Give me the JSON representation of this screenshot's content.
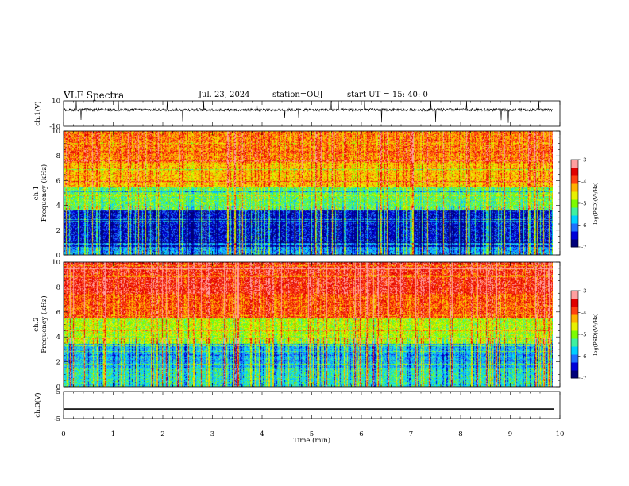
{
  "header": {
    "title": "VLF Spectra",
    "date": "Jul. 23, 2024",
    "station": "station=OUJ",
    "start": "start UT =  15: 40: 0"
  },
  "colors": {
    "spectrum_scale": [
      "#00007a",
      "#0000d8",
      "#1e6fff",
      "#00cfff",
      "#40f0a0",
      "#7cfc00",
      "#e8f000",
      "#ffb000",
      "#ff4010",
      "#e00000",
      "#ff9f9f"
    ],
    "trace": "#000000",
    "background": "#ffffff"
  },
  "chart_data": [
    {
      "type": "line",
      "name": "channel-1-waveform",
      "ylabel": "ch.1(V)",
      "ylim": [
        -10,
        10
      ],
      "yticks": [
        "10",
        "-10"
      ],
      "xlim": [
        0,
        10
      ],
      "values_note": "noise trace centred near 3 V with spikes",
      "baseline": 3
    },
    {
      "type": "heatmap",
      "name": "channel-1-spectrogram",
      "ylabel": "ch.1\nFrequency (kHz)",
      "ylim": [
        0,
        10
      ],
      "yticks": [
        "0",
        "2",
        "4",
        "6",
        "8",
        "10"
      ],
      "xlim": [
        0,
        9.85
      ],
      "colorbar": {
        "label": "log(PSD)(V²/Hz)",
        "range": [
          -7,
          -3
        ],
        "ticks": [
          "-3",
          "-4",
          "-5",
          "-6",
          "-7"
        ]
      },
      "intensity_bands_khz": [
        {
          "from": 0,
          "to": 1,
          "level": -6
        },
        {
          "from": 1,
          "to": 3.6,
          "level": -6.6
        },
        {
          "from": 3.6,
          "to": 5.5,
          "level": -5.2
        },
        {
          "from": 5.5,
          "to": 7.5,
          "level": -4.3
        },
        {
          "from": 7.5,
          "to": 10,
          "level": -4.0
        }
      ]
    },
    {
      "type": "heatmap",
      "name": "channel-2-spectrogram",
      "ylabel": "ch.2\nFrequency (kHz)",
      "ylim": [
        0,
        10
      ],
      "yticks": [
        "0",
        "2",
        "4",
        "6",
        "8",
        "10"
      ],
      "xlim": [
        0,
        9.85
      ],
      "colorbar": {
        "label": "log(PSD)(V²/Hz)",
        "range": [
          -7,
          -3
        ],
        "ticks": [
          "-3",
          "-4",
          "-5",
          "-6",
          "-7"
        ]
      },
      "intensity_bands_khz": [
        {
          "from": 0,
          "to": 1.5,
          "level": -5.5
        },
        {
          "from": 1.5,
          "to": 3.5,
          "level": -5.8
        },
        {
          "from": 3.5,
          "to": 5.5,
          "level": -4.8
        },
        {
          "from": 5.5,
          "to": 7.5,
          "level": -3.8
        },
        {
          "from": 7.5,
          "to": 10,
          "level": -3.5
        }
      ]
    },
    {
      "type": "line",
      "name": "channel-3-waveform",
      "ylabel": "ch.3(V)",
      "ylim": [
        -5,
        5
      ],
      "yticks": [
        "5",
        "-5"
      ],
      "xlim": [
        0,
        10
      ],
      "constant_value": -1.5
    }
  ],
  "x_axis": {
    "label": "Time (min)",
    "range": [
      0,
      10
    ],
    "ticks": [
      "0",
      "1",
      "2",
      "3",
      "4",
      "5",
      "6",
      "7",
      "8",
      "9",
      "10"
    ]
  }
}
